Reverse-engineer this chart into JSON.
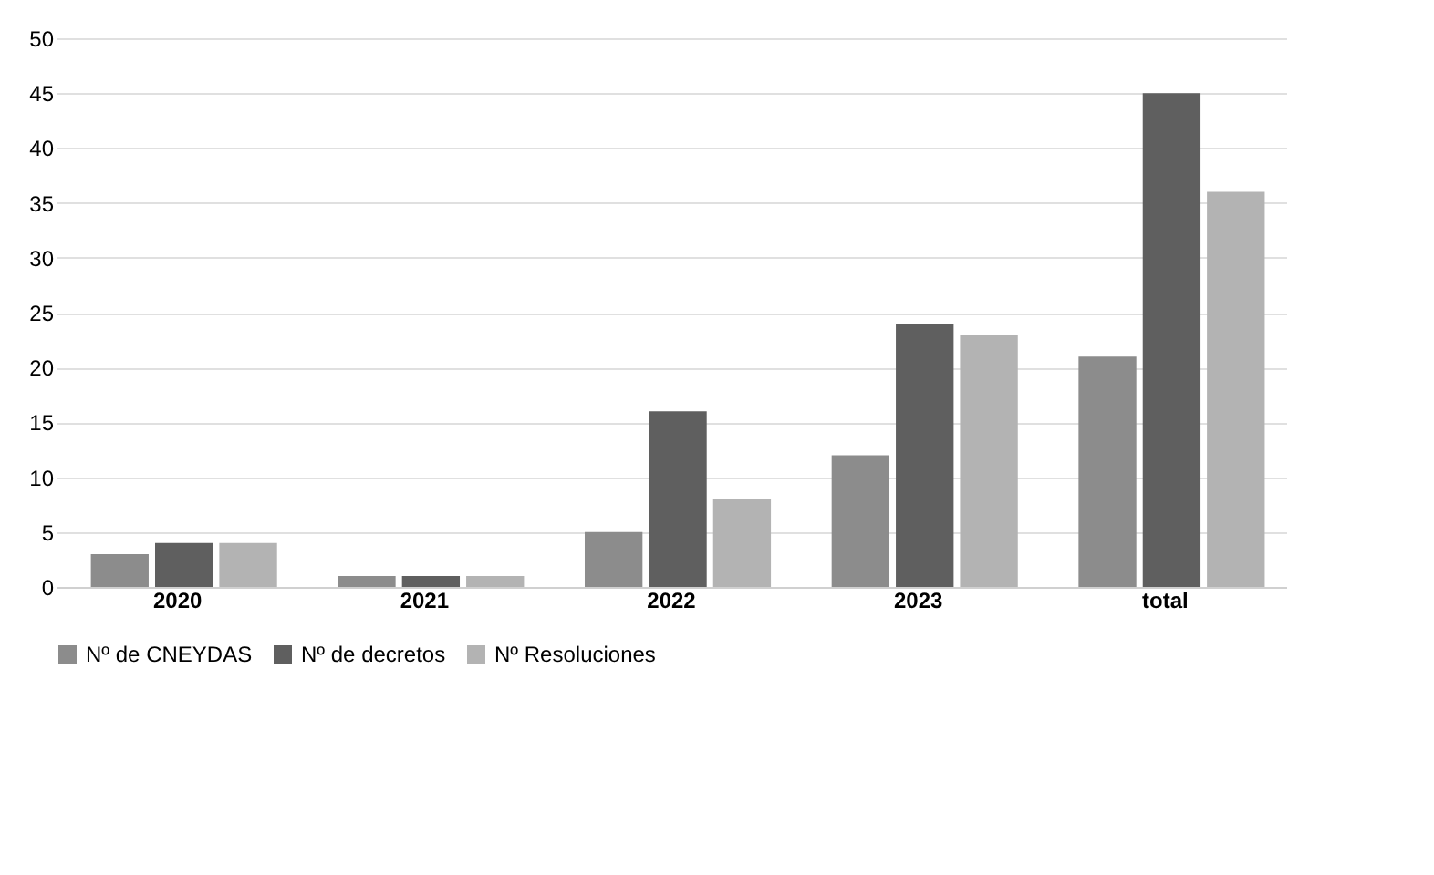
{
  "chart_data": {
    "type": "bar",
    "categories": [
      "2020",
      "2021",
      "2022",
      "2023",
      "total"
    ],
    "series": [
      {
        "name": "Nº de CNEYDAS",
        "color": "#8c8c8c",
        "values": [
          3,
          1,
          5,
          12,
          21
        ]
      },
      {
        "name": "Nº de decretos",
        "color": "#5f5f5f",
        "values": [
          4,
          1,
          16,
          24,
          45
        ]
      },
      {
        "name": "Nº Resoluciones",
        "color": "#b3b3b3",
        "values": [
          4,
          1,
          8,
          23,
          36
        ]
      }
    ],
    "ylim": [
      0,
      50
    ],
    "yticks": [
      0,
      5,
      10,
      15,
      20,
      25,
      30,
      35,
      40,
      45,
      50
    ],
    "grid": "y",
    "legend": "bottom"
  }
}
